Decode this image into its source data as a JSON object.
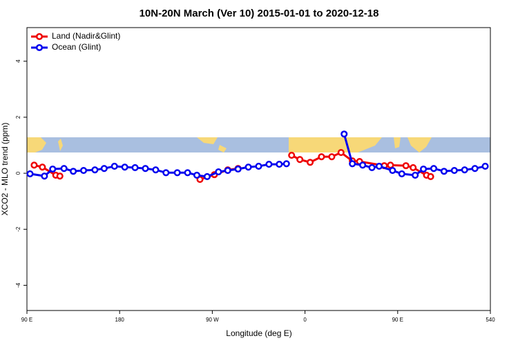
{
  "chart_data": {
    "type": "line",
    "title": "10N-20N March (Ver 10)   2015-01-01 to 2020-12-18",
    "xlabel": "Longitude (deg E)",
    "ylabel": "XCO2 - MLO trend (ppm)",
    "xlim": [
      90,
      540
    ],
    "xticks": [
      {
        "value": 90,
        "label": "90 E"
      },
      180,
      {
        "value": 270,
        "label": "90 W"
      },
      {
        "value": 360,
        "label": "0"
      },
      {
        "value": 450,
        "label": "90 E"
      },
      540
    ],
    "ylim": [
      -4.9,
      5.2
    ],
    "yticks": [
      -4,
      -2,
      0,
      2,
      4
    ],
    "legend": "topleft",
    "series": [
      {
        "name": "Land (Nadir&Glint)",
        "color": "#ee0000",
        "x": [
          97,
          105,
          118,
          122,
          null,
          258,
          272,
          285,
          295,
          null,
          347,
          355,
          365,
          376,
          386,
          395,
          406,
          413,
          437,
          443,
          458,
          465,
          478,
          482
        ],
        "values": [
          0.29,
          0.22,
          -0.07,
          -0.1,
          null,
          -0.22,
          -0.05,
          0.12,
          0.17,
          null,
          0.64,
          0.49,
          0.39,
          0.59,
          0.59,
          0.74,
          0.44,
          0.42,
          0.27,
          0.29,
          0.27,
          0.2,
          -0.07,
          -0.12
        ]
      },
      {
        "name": "Ocean (Glint)",
        "color": "#0000ee",
        "x": [
          93,
          107,
          115,
          126,
          135,
          145,
          156,
          165,
          175,
          185,
          195,
          205,
          215,
          225,
          236,
          246,
          255,
          265,
          276,
          285,
          295,
          305,
          315,
          325,
          335,
          342,
          null,
          398,
          406,
          416,
          425,
          432,
          445,
          454,
          467,
          475,
          485,
          495,
          505,
          515,
          525,
          535
        ],
        "values": [
          -0.02,
          -0.1,
          0.15,
          0.17,
          0.07,
          0.1,
          0.12,
          0.17,
          0.25,
          0.22,
          0.2,
          0.17,
          0.12,
          0.02,
          0.02,
          0.02,
          -0.07,
          -0.12,
          0.05,
          0.1,
          0.15,
          0.22,
          0.25,
          0.32,
          0.32,
          0.34,
          null,
          1.4,
          0.34,
          0.29,
          0.2,
          0.25,
          0.1,
          -0.02,
          -0.07,
          0.15,
          0.17,
          0.07,
          0.1,
          0.12,
          0.17,
          0.25
        ]
      }
    ]
  }
}
